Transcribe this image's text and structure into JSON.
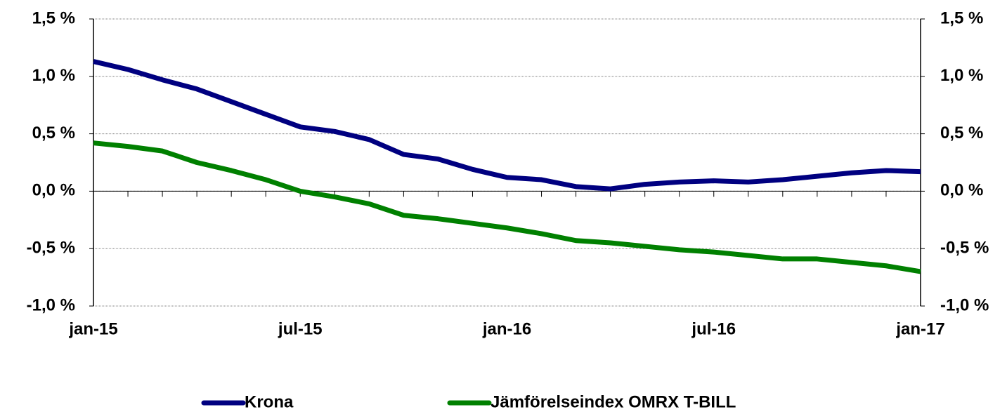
{
  "chart_data": {
    "type": "line",
    "categories": [
      "jan-15",
      null,
      null,
      null,
      null,
      null,
      "jul-15",
      null,
      null,
      null,
      null,
      null,
      "jan-16",
      null,
      null,
      null,
      null,
      null,
      "jul-16",
      null,
      null,
      null,
      null,
      null,
      "jan-17"
    ],
    "series": [
      {
        "name": "Krona",
        "color": "#000080",
        "values": [
          1.13,
          1.06,
          0.97,
          0.89,
          0.78,
          0.67,
          0.56,
          0.52,
          0.45,
          0.32,
          0.28,
          0.19,
          0.12,
          0.1,
          0.04,
          0.02,
          0.06,
          0.08,
          0.09,
          0.08,
          0.1,
          0.13,
          0.16,
          0.18,
          0.17
        ]
      },
      {
        "name": "Jämförelseindex OMRX T-BILL",
        "color": "#008000",
        "values": [
          0.42,
          0.39,
          0.35,
          0.25,
          0.18,
          0.1,
          0.0,
          -0.05,
          -0.11,
          -0.21,
          -0.24,
          -0.28,
          -0.32,
          -0.37,
          -0.43,
          -0.45,
          -0.48,
          -0.51,
          -0.53,
          -0.56,
          -0.59,
          -0.59,
          -0.62,
          -0.65,
          -0.7
        ]
      }
    ],
    "ylim": [
      -1.0,
      1.5
    ],
    "yticks": [
      {
        "value": -1.0,
        "label": "-1,0 %"
      },
      {
        "value": -0.5,
        "label": "-0,5 %"
      },
      {
        "value": 0,
        "label": "0,0 %"
      },
      {
        "value": 0.5,
        "label": "0,5 %"
      },
      {
        "value": 1.0,
        "label": "1,0 %"
      },
      {
        "value": 1.5,
        "label": "1,5 %"
      }
    ],
    "y2lim": [
      -1.0,
      1.5
    ],
    "y2ticks": [
      {
        "value": -1.0,
        "label": "-1,0 %"
      },
      {
        "value": -0.5,
        "label": "-0,5 %"
      },
      {
        "value": 0,
        "label": "0,0 %"
      },
      {
        "value": 0.5,
        "label": "0,5 %"
      },
      {
        "value": 1.0,
        "label": "1,0 %"
      },
      {
        "value": 1.5,
        "label": "1,5 %"
      }
    ],
    "grid": true,
    "legend": "bottom"
  }
}
